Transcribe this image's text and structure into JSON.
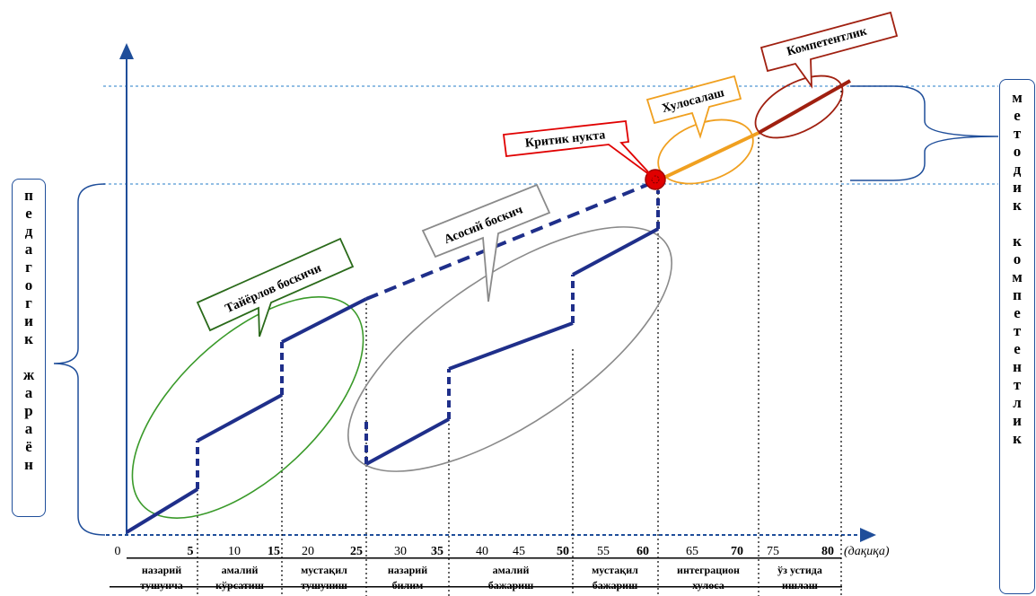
{
  "x_axis": {
    "ticks": [
      "0",
      "5",
      "10",
      "15",
      "20",
      "25",
      "30",
      "35",
      "40",
      "45",
      "50",
      "55",
      "60",
      "65",
      "70",
      "75",
      "80"
    ],
    "bold_ticks": [
      "5",
      "15",
      "25",
      "35",
      "50",
      "60",
      "70",
      "80"
    ],
    "unit": "(дақиқа)"
  },
  "phases": [
    {
      "line1": "назарий",
      "line2": "тушунча"
    },
    {
      "line1": "амалий",
      "line2": "кўрсатиш"
    },
    {
      "line1": "мустақил",
      "line2": "тушуниш"
    },
    {
      "line1": "назарий",
      "line2": "билим"
    },
    {
      "line1": "амалий",
      "line2": "бажариш"
    },
    {
      "line1": "мустақил",
      "line2": "бажариш"
    },
    {
      "line1": "интеграцион",
      "line2": "хулоса"
    },
    {
      "line1": "ўз устида",
      "line2": "ишлаш"
    }
  ],
  "callouts": {
    "preparation": "Тайёрлов боскичи",
    "main": "Асосий боскич",
    "critical": "Критик нукта",
    "conclusion": "Хулосалаш",
    "competence": "Компетентлик"
  },
  "left_label": [
    "п",
    "е",
    "д",
    "а",
    "г",
    "о",
    "г",
    "и",
    "к",
    "",
    "ж",
    "а",
    "р",
    "а",
    "ё",
    "н"
  ],
  "right_label": [
    "м",
    "е",
    "т",
    "о",
    "д",
    "и",
    "к",
    "",
    "к",
    "о",
    "м",
    "п",
    "е",
    "т",
    "е",
    "н",
    "т",
    "л",
    "и",
    "к"
  ],
  "colors": {
    "axis": "#1f4e9a",
    "line": "#1f2f8a",
    "green": "#3a9a2a",
    "gray": "#8a8a8a",
    "orange": "#f0a020",
    "brown": "#a02010",
    "red": "#e00000"
  }
}
